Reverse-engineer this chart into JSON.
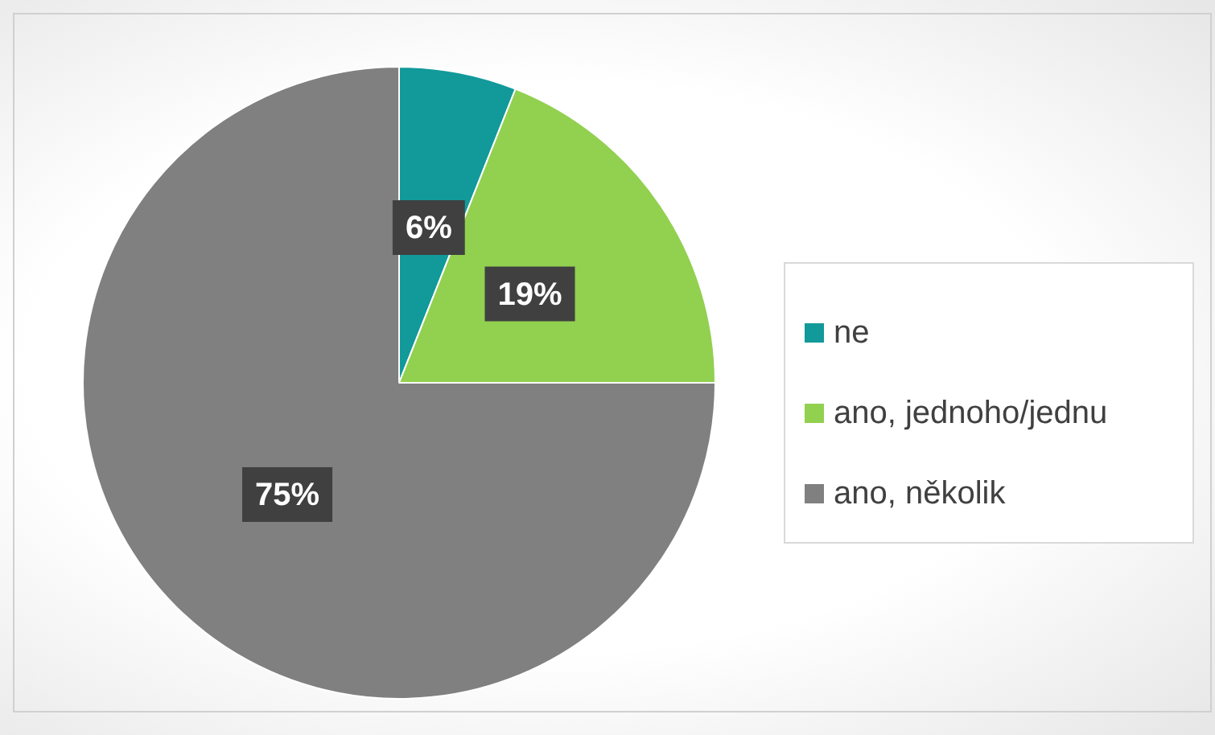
{
  "chart_data": {
    "type": "pie",
    "categories": [
      "ne",
      "ano, jednoho/jednu",
      "ano, několik"
    ],
    "values": [
      6,
      19,
      75
    ],
    "colors": [
      "#12999a",
      "#92d050",
      "#808080"
    ],
    "value_labels": [
      "6%",
      "19%",
      "75%"
    ],
    "legend": "right"
  }
}
